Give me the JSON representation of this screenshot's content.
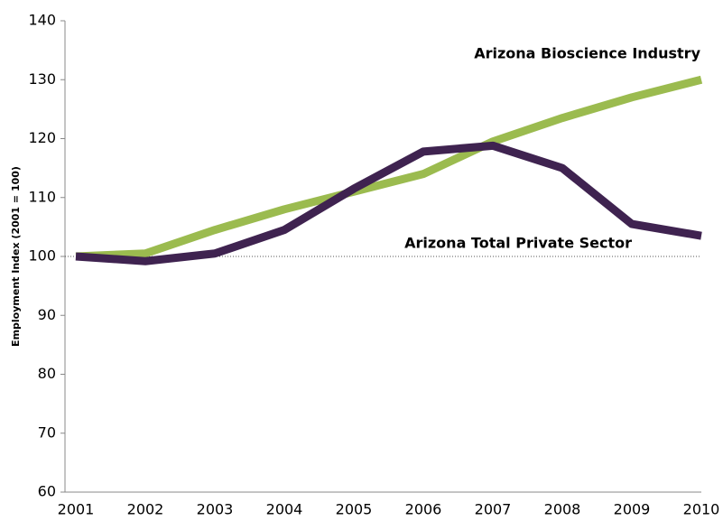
{
  "chart_data": {
    "type": "line",
    "y_axis_label": "Employment Index (2001 = 100)",
    "x": [
      "2001",
      "2002",
      "2003",
      "2004",
      "2005",
      "2006",
      "2007",
      "2008",
      "2009",
      "2010"
    ],
    "series": [
      {
        "name": "Arizona Bioscience Industry",
        "color": "#9bbb4f",
        "values": [
          100,
          100.5,
          104.5,
          108,
          111,
          114,
          119.5,
          123.5,
          127,
          130
        ]
      },
      {
        "name": "Arizona Total Private Sector",
        "color": "#3f2350",
        "values": [
          100,
          99.2,
          100.5,
          104.5,
          111.5,
          117.8,
          118.8,
          115,
          105.5,
          103.5
        ]
      }
    ],
    "reference_line": 100,
    "ylim": [
      60,
      140
    ],
    "yticks": [
      60,
      70,
      80,
      90,
      100,
      110,
      120,
      130,
      140
    ]
  }
}
